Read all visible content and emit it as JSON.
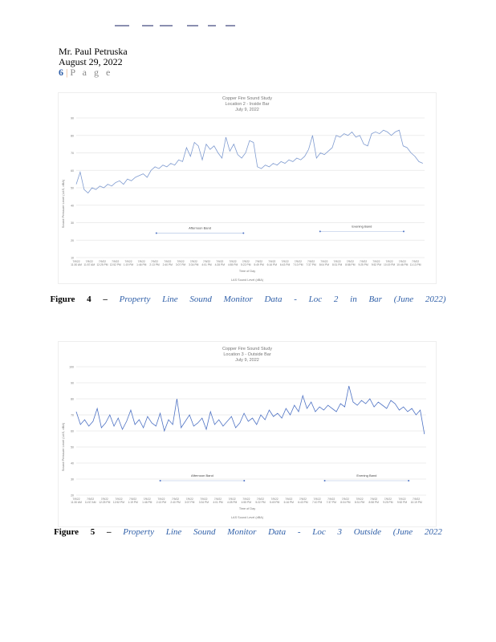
{
  "header": {
    "name": "Mr.  Paul  Petruska",
    "date": "August  29, 2022",
    "page_number": "6",
    "page_label": "P a g e"
  },
  "figures": [
    {
      "caption_prefix": "Figure",
      "caption_number": "4 –",
      "caption_text": "Property Line Sound Monitor Data - Loc 2 in Bar (June 2022)"
    },
    {
      "caption_prefix": "Figure",
      "caption_number": "5 –",
      "caption_text": "Property Line Sound Monitor Data - Loc 3 Outside (June 2022"
    }
  ],
  "chart_data": [
    {
      "type": "line",
      "title": "Copper Fire Sound Study",
      "subtitle": "Location 2 - Inside Bar",
      "date": "July 9, 2022",
      "xlabel": "Time of Day",
      "ylabel": "Sound Pressure Level (LAS, dBA)",
      "legend": "LAS Sound Level (dBA)",
      "legend_position": "bottom",
      "ylim": [
        10,
        90
      ],
      "yticks": [
        90,
        80,
        70,
        60,
        50,
        40,
        30,
        20,
        10
      ],
      "color": "#7f9bd0",
      "xticks": [
        "7/9/22 11:30 AM",
        "7/9/22 11:57 AM",
        "7/9/22 12:25 PM",
        "7/9/22 12:52 PM",
        "7/9/22 1:19 PM",
        "7/9/22 1:46 PM",
        "7/9/22 2:13 PM",
        "7/9/22 2:40 PM",
        "7/9/22 3:07 PM",
        "7/9/22 3:34 PM",
        "7/9/22 4:01 PM",
        "7/9/22 4:28 PM",
        "7/9/22 4:55 PM",
        "7/9/22 5:22 PM",
        "7/9/22 5:49 PM",
        "7/9/22 6:16 PM",
        "7/9/22 6:43 PM",
        "7/9/22 7:10 PM",
        "7/9/22 7:37 PM",
        "7/9/22 8:04 PM",
        "7/9/22 8:31 PM",
        "7/9/22 8:58 PM",
        "7/9/22 9:25 PM",
        "7/9/22 9:52 PM",
        "7/9/22 10:19 PM",
        "7/9/22 10:46 PM",
        "7/9/22 11:13 PM"
      ],
      "values": [
        52,
        59,
        49,
        47,
        50,
        49,
        51,
        50,
        52,
        51,
        53,
        54,
        52,
        55,
        54,
        56,
        57,
        58,
        56,
        60,
        62,
        61,
        63,
        62,
        64,
        63,
        66,
        65,
        73,
        68,
        76,
        74,
        66,
        75,
        72,
        74,
        70,
        67,
        79,
        71,
        75,
        69,
        67,
        70,
        77,
        76,
        62,
        61,
        63,
        62,
        64,
        63,
        65,
        64,
        66,
        65,
        67,
        66,
        68,
        72,
        80,
        67,
        70,
        69,
        71,
        73,
        80,
        79,
        81,
        80,
        82,
        79,
        80,
        75,
        74,
        81,
        82,
        81,
        83,
        82,
        80,
        82,
        83,
        74,
        73,
        70,
        68,
        65,
        64
      ],
      "annotations": [
        {
          "label": "Afternoon Band",
          "x_start": 0.23,
          "x_end": 0.48,
          "y": 24
        },
        {
          "label": "Evening Band",
          "x_start": 0.7,
          "x_end": 0.94,
          "y": 25
        }
      ]
    },
    {
      "type": "line",
      "title": "Copper Fire Sound Study",
      "subtitle": "Location 3 - Outside Bar",
      "date": "July 9, 2022",
      "xlabel": "Time of Day",
      "ylabel": "Sound Pressure Level (LAS, dBA)",
      "legend": "LAS Sound Level (dBA)",
      "legend_position": "bottom",
      "ylim": [
        20,
        100
      ],
      "yticks": [
        100,
        90,
        80,
        70,
        60,
        50,
        40,
        30,
        20
      ],
      "color": "#4f73c4",
      "xticks": [
        "7/9/22 11:30 AM",
        "7/9/22 11:57 AM",
        "7/9/22 12:25 PM",
        "7/9/22 12:52 PM",
        "7/9/22 1:19 PM",
        "7/9/22 1:46 PM",
        "7/9/22 2:13 PM",
        "7/9/22 2:40 PM",
        "7/9/22 3:07 PM",
        "7/9/22 3:34 PM",
        "7/9/22 4:01 PM",
        "7/9/22 4:28 PM",
        "7/9/22 4:55 PM",
        "7/9/22 5:22 PM",
        "7/9/22 5:49 PM",
        "7/9/22 6:16 PM",
        "7/9/22 6:43 PM",
        "7/9/22 7:10 PM",
        "7/9/22 7:37 PM",
        "7/9/22 8:04 PM",
        "7/9/22 8:31 PM",
        "7/9/22 8:58 PM",
        "7/9/22 9:25 PM",
        "7/9/22 9:52 PM",
        "7/9/22 10:19 PM"
      ],
      "values": [
        72,
        64,
        67,
        63,
        66,
        74,
        62,
        65,
        70,
        63,
        68,
        61,
        66,
        73,
        64,
        67,
        62,
        69,
        65,
        63,
        71,
        60,
        67,
        64,
        80,
        62,
        66,
        70,
        63,
        65,
        68,
        61,
        72,
        64,
        67,
        63,
        66,
        69,
        62,
        65,
        71,
        66,
        68,
        64,
        70,
        67,
        73,
        69,
        71,
        68,
        74,
        70,
        76,
        72,
        82,
        74,
        78,
        72,
        75,
        73,
        76,
        74,
        72,
        77,
        75,
        88,
        78,
        76,
        79,
        77,
        80,
        75,
        78,
        76,
        74,
        79,
        77,
        73,
        75,
        72,
        74,
        70,
        73,
        58
      ],
      "annotations": [
        {
          "label": "Afternoon Band",
          "x_start": 0.24,
          "x_end": 0.48,
          "y": 29
        },
        {
          "label": "Evening Band",
          "x_start": 0.71,
          "x_end": 0.95,
          "y": 29
        }
      ]
    }
  ]
}
